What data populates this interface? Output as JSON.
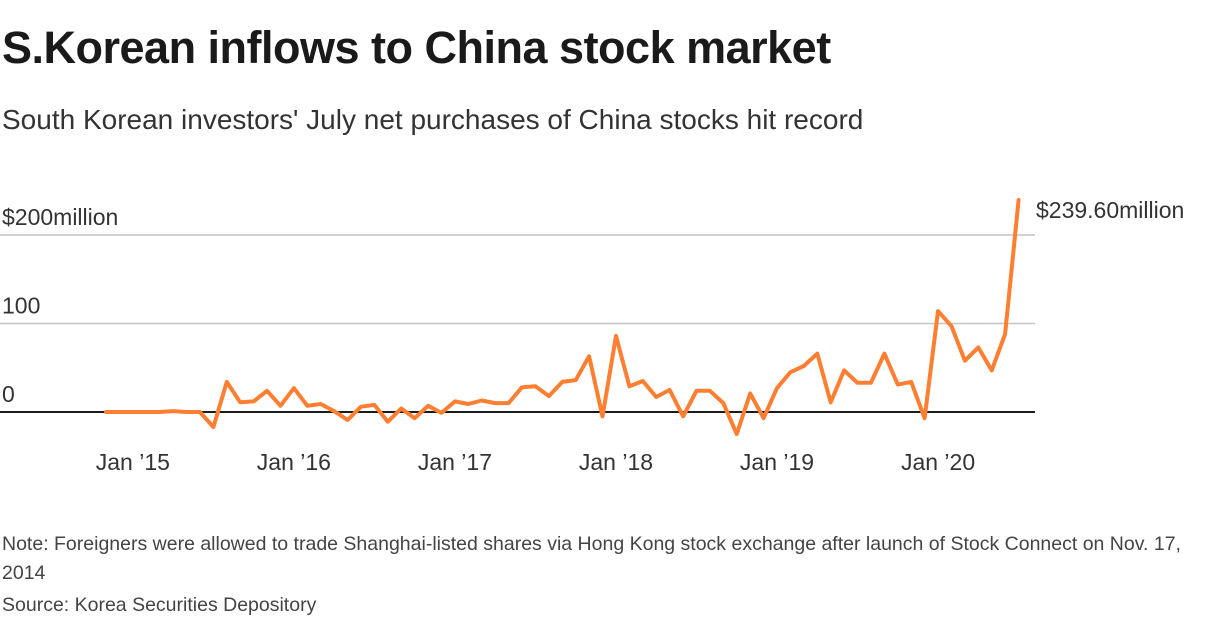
{
  "title": "S.Korean inflows to China stock market",
  "subtitle": "South Korean investors' July net purchases of China stocks hit record",
  "note": "Note: Foreigners were allowed to trade Shanghai-listed shares via Hong Kong stock exchange after launch of Stock Connect on Nov. 17, 2014",
  "source": "Source: Korea Securities Depository",
  "colors": {
    "line": "#ff7f32",
    "grid": "#c4c4c4",
    "zero": "#1a1a1a"
  },
  "chart_data": {
    "type": "line",
    "title": "S.Korean inflows to China stock market",
    "xlabel": "",
    "ylabel": "$ million",
    "ylim": [
      -30,
      250
    ],
    "yticks": [
      {
        "value": 0,
        "label": "0"
      },
      {
        "value": 100,
        "label": "100"
      },
      {
        "value": 200,
        "label": "$200million"
      }
    ],
    "xticks": [
      {
        "index": 2,
        "label": "Jan ’15"
      },
      {
        "index": 14,
        "label": "Jan ’16"
      },
      {
        "index": 26,
        "label": "Jan ’17"
      },
      {
        "index": 38,
        "label": "Jan ’18"
      },
      {
        "index": 50,
        "label": "Jan ’19"
      },
      {
        "index": 62,
        "label": "Jan ’20"
      }
    ],
    "start": "Nov 2014",
    "end": "Jul 2020",
    "frequency": "monthly",
    "annotation": "$239.60million",
    "series": [
      {
        "name": "Net purchases",
        "values": [
          0,
          0,
          0,
          0,
          0,
          1,
          0,
          0,
          -17,
          34,
          11,
          12,
          24,
          7,
          27,
          7,
          9,
          1,
          -9,
          6,
          8,
          -11,
          4,
          -7,
          7,
          -1,
          12,
          9,
          13,
          10,
          10,
          28,
          29,
          18,
          34,
          36,
          63,
          -5,
          86,
          29,
          35,
          17,
          25,
          -5,
          24,
          24,
          10,
          -25,
          21,
          -7,
          27,
          45,
          52,
          66,
          11,
          47,
          33,
          33,
          66,
          31,
          34,
          -7,
          114,
          97,
          58,
          73,
          47,
          88,
          239.6
        ]
      }
    ]
  }
}
